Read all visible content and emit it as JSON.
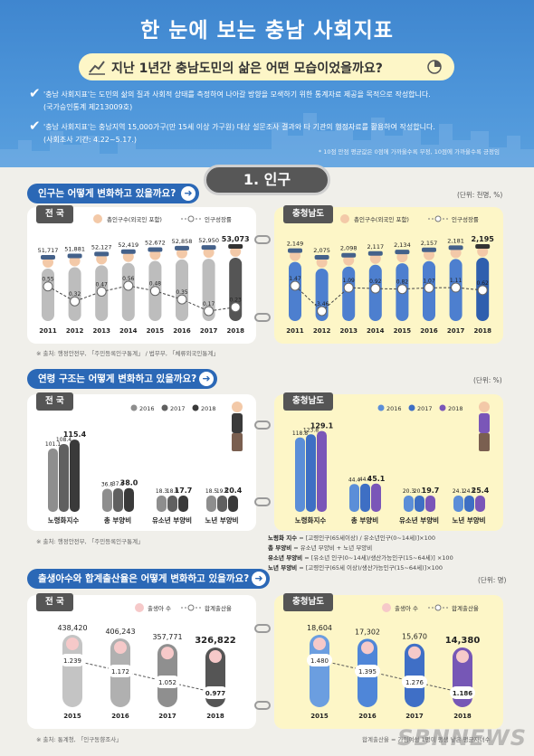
{
  "header": {
    "title": "한 눈에 보는 충남 사회지표",
    "subtitle": "지난 1년간 충남도민의 삶은 어떤 모습이었을까요?",
    "bullet1_line1": "'충남 사회지표'는 도민의 삶의 질과 사회적 상태를 측정하여 나아갈 방향을 모색하기 위한 통계자료 제공을 목적으로 작성합니다.",
    "bullet1_line2": "(국가승인통계 제213009호)",
    "bullet2_line1": "'충남 사회지표'는 충남지역 15,000가구(만 15세 이상 가구원) 대상 설문조사 결과와 타 기관의 행정자료를 활용하여 작성합니다.",
    "bullet2_line2": "(사회조사 기간: 4.22~5.17.)",
    "note": "* 10점 만점 평균값은 0점에 가까울수록 부정, 10점에 가까울수록 긍정임"
  },
  "section_title": "1. 인구",
  "population": {
    "question": "인구는 어떻게 변화하고 있을까요?",
    "unit": "(단위: 천명, %)",
    "legend_bar": "총인구수(외국인 포함)",
    "legend_line": "인구성장률",
    "source": "※ 출처: 행정안전부, 「주민등록인구통계」 / 법무부, 「체류외국인통계」"
  },
  "age": {
    "question": "연령 구조는 어떻게 변화하고 있을까요?",
    "unit": "(단위: %)",
    "source": "※ 출처: 행정안전부, 「주민등록인구통계」",
    "formula": [
      {
        "k": "노령화 지수",
        "v": " = [고령인구(65세이상) / 유소년인구(0~14세)]×100"
      },
      {
        "k": "총 부양비",
        "v": " = 유소년 부양비 + 노년 부양비"
      },
      {
        "k": "유소년 부양비",
        "v": " = [유소년 인구(0~14세)/생산가능인구(15~64세)] ×100"
      },
      {
        "k": "노년 부양비",
        "v": " = [고령인구(65세 이상)/생산가능인구(15~64세)]×100"
      }
    ]
  },
  "birth": {
    "question": "출생아수와 합계출산율은 어떻게 변화하고 있을까요?",
    "unit": "(단위: 명)",
    "legend_bar": "출생아 수",
    "legend_line": "합계출산율",
    "source": "※ 출처: 통계청, 「인구동향조사」",
    "source_right": "합계출산율 = 가임여성 1명이 평생 낳은 평균자녀수"
  },
  "labels": {
    "national": "전 국",
    "chungnam": "충청남도"
  },
  "watermark": "SBNNEWS",
  "colors": {
    "accent": "#2b68b6",
    "national_bar": "#b8b8b8",
    "national_last": "#555555",
    "cn_bar": "#4d7fcf"
  },
  "chart_data": [
    {
      "type": "bar",
      "title": "전 국",
      "unit": "천명, %",
      "categories": [
        "2011",
        "2012",
        "2013",
        "2014",
        "2015",
        "2016",
        "2017",
        "2018"
      ],
      "series": [
        {
          "name": "총인구수(외국인 포함)",
          "values": [
            51717,
            51881,
            52127,
            52419,
            52672,
            52858,
            52950,
            53073
          ]
        },
        {
          "name": "인구성장률",
          "type": "line",
          "values": [
            0.55,
            0.32,
            0.47,
            0.56,
            0.48,
            0.35,
            0.17,
            0.23
          ]
        }
      ]
    },
    {
      "type": "bar",
      "title": "충청남도",
      "unit": "천명, %",
      "categories": [
        "2011",
        "2012",
        "2013",
        "2014",
        "2015",
        "2016",
        "2017",
        "2018"
      ],
      "series": [
        {
          "name": "총인구수(외국인 포함)",
          "values": [
            2149,
            2075,
            2098,
            2117,
            2134,
            2157,
            2181,
            2195
          ]
        },
        {
          "name": "인구성장률",
          "type": "line",
          "values": [
            1.47,
            -3.46,
            1.09,
            0.92,
            0.82,
            1.07,
            1.11,
            0.62
          ]
        }
      ]
    },
    {
      "type": "bar",
      "title": "전 국",
      "unit": "%",
      "categories": [
        "노령화지수",
        "총 부양비",
        "유소년 부양비",
        "노년 부양비"
      ],
      "series": [
        {
          "name": "2016",
          "values": [
            101.1,
            36.8,
            18.3,
            18.5
          ]
        },
        {
          "name": "2017",
          "values": [
            108.4,
            37.6,
            18.0,
            19.5
          ]
        },
        {
          "name": "2018",
          "values": [
            115.4,
            38.0,
            17.7,
            20.4
          ]
        }
      ]
    },
    {
      "type": "bar",
      "title": "충청남도",
      "unit": "%",
      "categories": [
        "노령화지수",
        "총 부양비",
        "유소년 부양비",
        "노년 부양비"
      ],
      "series": [
        {
          "name": "2016",
          "values": [
            118.8,
            44.4,
            20.3,
            24.1
          ]
        },
        {
          "name": "2017",
          "values": [
            123.8,
            44.9,
            20.1,
            24.8
          ]
        },
        {
          "name": "2018",
          "values": [
            129.1,
            45.1,
            19.7,
            25.4
          ]
        }
      ]
    },
    {
      "type": "bar",
      "title": "전 국",
      "unit": "명",
      "categories": [
        "2015",
        "2016",
        "2017",
        "2018"
      ],
      "series": [
        {
          "name": "출생아 수",
          "values": [
            438420,
            406243,
            357771,
            326822
          ]
        },
        {
          "name": "합계출산율",
          "type": "line",
          "values": [
            1.239,
            1.172,
            1.052,
            0.977
          ]
        }
      ]
    },
    {
      "type": "bar",
      "title": "충청남도",
      "unit": "명",
      "categories": [
        "2015",
        "2016",
        "2017",
        "2018"
      ],
      "series": [
        {
          "name": "출생아 수",
          "values": [
            18604,
            17302,
            15670,
            14380
          ]
        },
        {
          "name": "합계출산율",
          "type": "line",
          "values": [
            1.48,
            1.395,
            1.276,
            1.186
          ]
        }
      ]
    }
  ]
}
